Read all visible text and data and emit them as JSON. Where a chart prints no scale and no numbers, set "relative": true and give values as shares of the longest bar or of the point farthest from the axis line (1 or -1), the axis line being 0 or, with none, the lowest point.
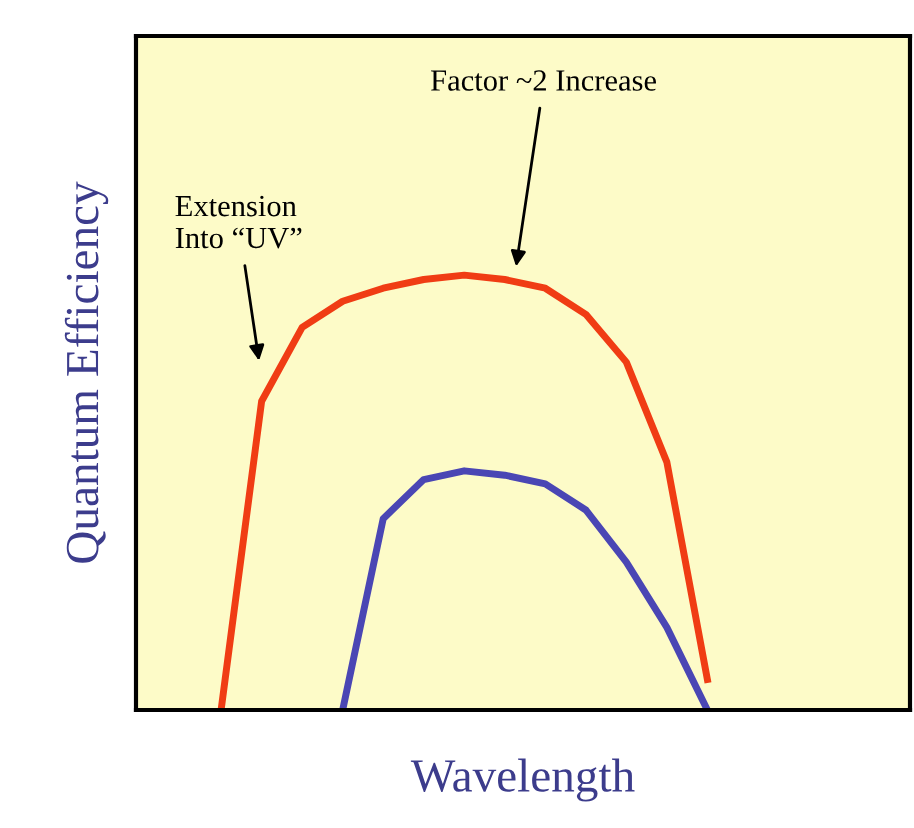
{
  "chart_data": {
    "type": "line",
    "relative": true,
    "xlabel": "Wavelength",
    "ylabel": "Quantum Efficiency",
    "categories": [
      null,
      null,
      null,
      null,
      null,
      null,
      null,
      null,
      null,
      null,
      null,
      null,
      null,
      null,
      null,
      null,
      null,
      null,
      null,
      null
    ],
    "series": [
      {
        "color": "#f03c14",
        "values": [
          null,
          null,
          0,
          0.71,
          0.88,
          0.94,
          0.97,
          0.99,
          1.0,
          0.99,
          0.97,
          0.91,
          0.8,
          0.57,
          0.07,
          null,
          null,
          null,
          null,
          null
        ]
      },
      {
        "color": "#4a46b4",
        "values": [
          null,
          null,
          null,
          null,
          null,
          0,
          0.44,
          0.53,
          0.55,
          0.54,
          0.52,
          0.46,
          0.34,
          0.19,
          0,
          null,
          null,
          null,
          null,
          null
        ]
      }
    ],
    "annotations": [
      "Factor ~2 Increase",
      "Extension\nInto “UV”"
    ],
    "grid": false
  }
}
